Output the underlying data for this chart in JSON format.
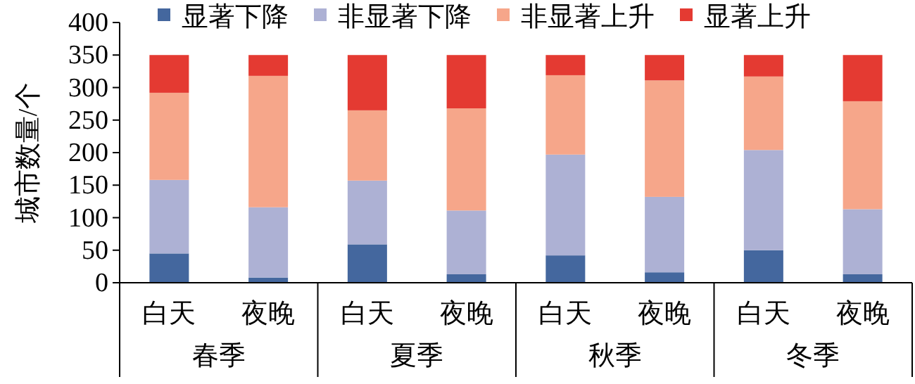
{
  "chart_data": {
    "type": "bar",
    "stacked": true,
    "ylabel": "城市数量/个",
    "categories": [
      "白天",
      "夜晚",
      "白天",
      "夜晚",
      "白天",
      "夜晚",
      "白天",
      "夜晚"
    ],
    "annotations": [
      "春季",
      "夏季",
      "秋季",
      "冬季"
    ],
    "series": [
      {
        "name": "显著下降",
        "color": "#44679e",
        "values": [
          45,
          8,
          59,
          13,
          42,
          16,
          50,
          13
        ]
      },
      {
        "name": "非显著下降",
        "color": "#adb1d4",
        "values": [
          113,
          108,
          98,
          98,
          155,
          116,
          154,
          100
        ]
      },
      {
        "name": "非显著上升",
        "color": "#f6a68a",
        "values": [
          134,
          202,
          108,
          157,
          122,
          179,
          113,
          166
        ]
      },
      {
        "name": "显著上升",
        "color": "#e43a32",
        "values": [
          58,
          32,
          85,
          82,
          31,
          39,
          33,
          71
        ]
      }
    ],
    "ylim": [
      0,
      400
    ],
    "yticks": [
      0,
      50,
      100,
      150,
      200,
      250,
      300,
      350,
      400
    ],
    "legend": "top",
    "grid": false
  }
}
